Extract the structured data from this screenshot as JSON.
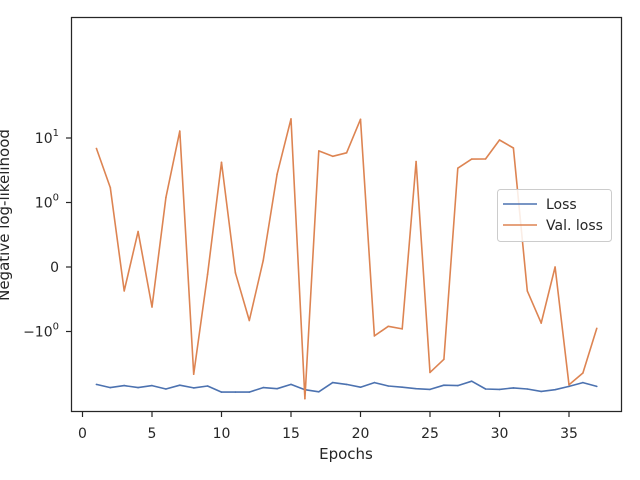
{
  "chart_data": {
    "type": "line",
    "title": "",
    "xlabel": "Epochs",
    "ylabel": "Negative log-likelihood",
    "yscale": "symlog",
    "xlim": [
      0,
      38.8
    ],
    "ylim": [
      -13,
      20
    ],
    "x_ticks": [
      0,
      5,
      10,
      15,
      20,
      25,
      30,
      35
    ],
    "y_ticks": [
      {
        "value": 10,
        "base": "10",
        "exp": "1"
      },
      {
        "value": 1,
        "base": "10",
        "exp": "0"
      },
      {
        "value": 0,
        "text": "0"
      },
      {
        "value": -1,
        "base": "−10",
        "exp": "0"
      }
    ],
    "legend": {
      "position": "center-right"
    },
    "grid": false,
    "x": [
      1,
      2,
      3,
      4,
      5,
      6,
      7,
      8,
      9,
      10,
      11,
      12,
      13,
      14,
      15,
      16,
      17,
      18,
      19,
      20,
      21,
      22,
      23,
      24,
      25,
      26,
      27,
      28,
      29,
      30,
      31,
      32,
      33,
      34,
      35,
      36,
      37
    ],
    "series": [
      {
        "name": "Loss",
        "color": "#4c72b0",
        "values": [
          -6.6,
          -7.4,
          -6.9,
          -7.4,
          -6.9,
          -7.8,
          -6.8,
          -7.5,
          -7.0,
          -8.7,
          -8.7,
          -8.7,
          -7.4,
          -7.7,
          -6.6,
          -8.0,
          -8.6,
          -6.2,
          -6.6,
          -7.3,
          -6.2,
          -7.0,
          -7.3,
          -7.7,
          -7.9,
          -6.8,
          -6.9,
          -5.9,
          -7.8,
          -7.9,
          -7.5,
          -7.8,
          -8.5,
          -8.0,
          -7.1,
          -6.2,
          -7.1
        ]
      },
      {
        "name": "Val. loss",
        "color": "#dd8452",
        "values": [
          6.9,
          1.7,
          -0.37,
          0.55,
          -0.62,
          1.19,
          12.8,
          -4.6,
          -0.11,
          4.2,
          -0.09,
          -0.83,
          0.1,
          2.75,
          19.8,
          -11.0,
          6.3,
          5.2,
          5.9,
          19.5,
          -1.17,
          -0.92,
          -0.96,
          4.3,
          -4.3,
          -2.7,
          3.4,
          4.7,
          4.75,
          9.3,
          7.0,
          -0.37,
          -0.87,
          0.0,
          -6.7,
          -4.4,
          -0.95
        ]
      }
    ]
  }
}
